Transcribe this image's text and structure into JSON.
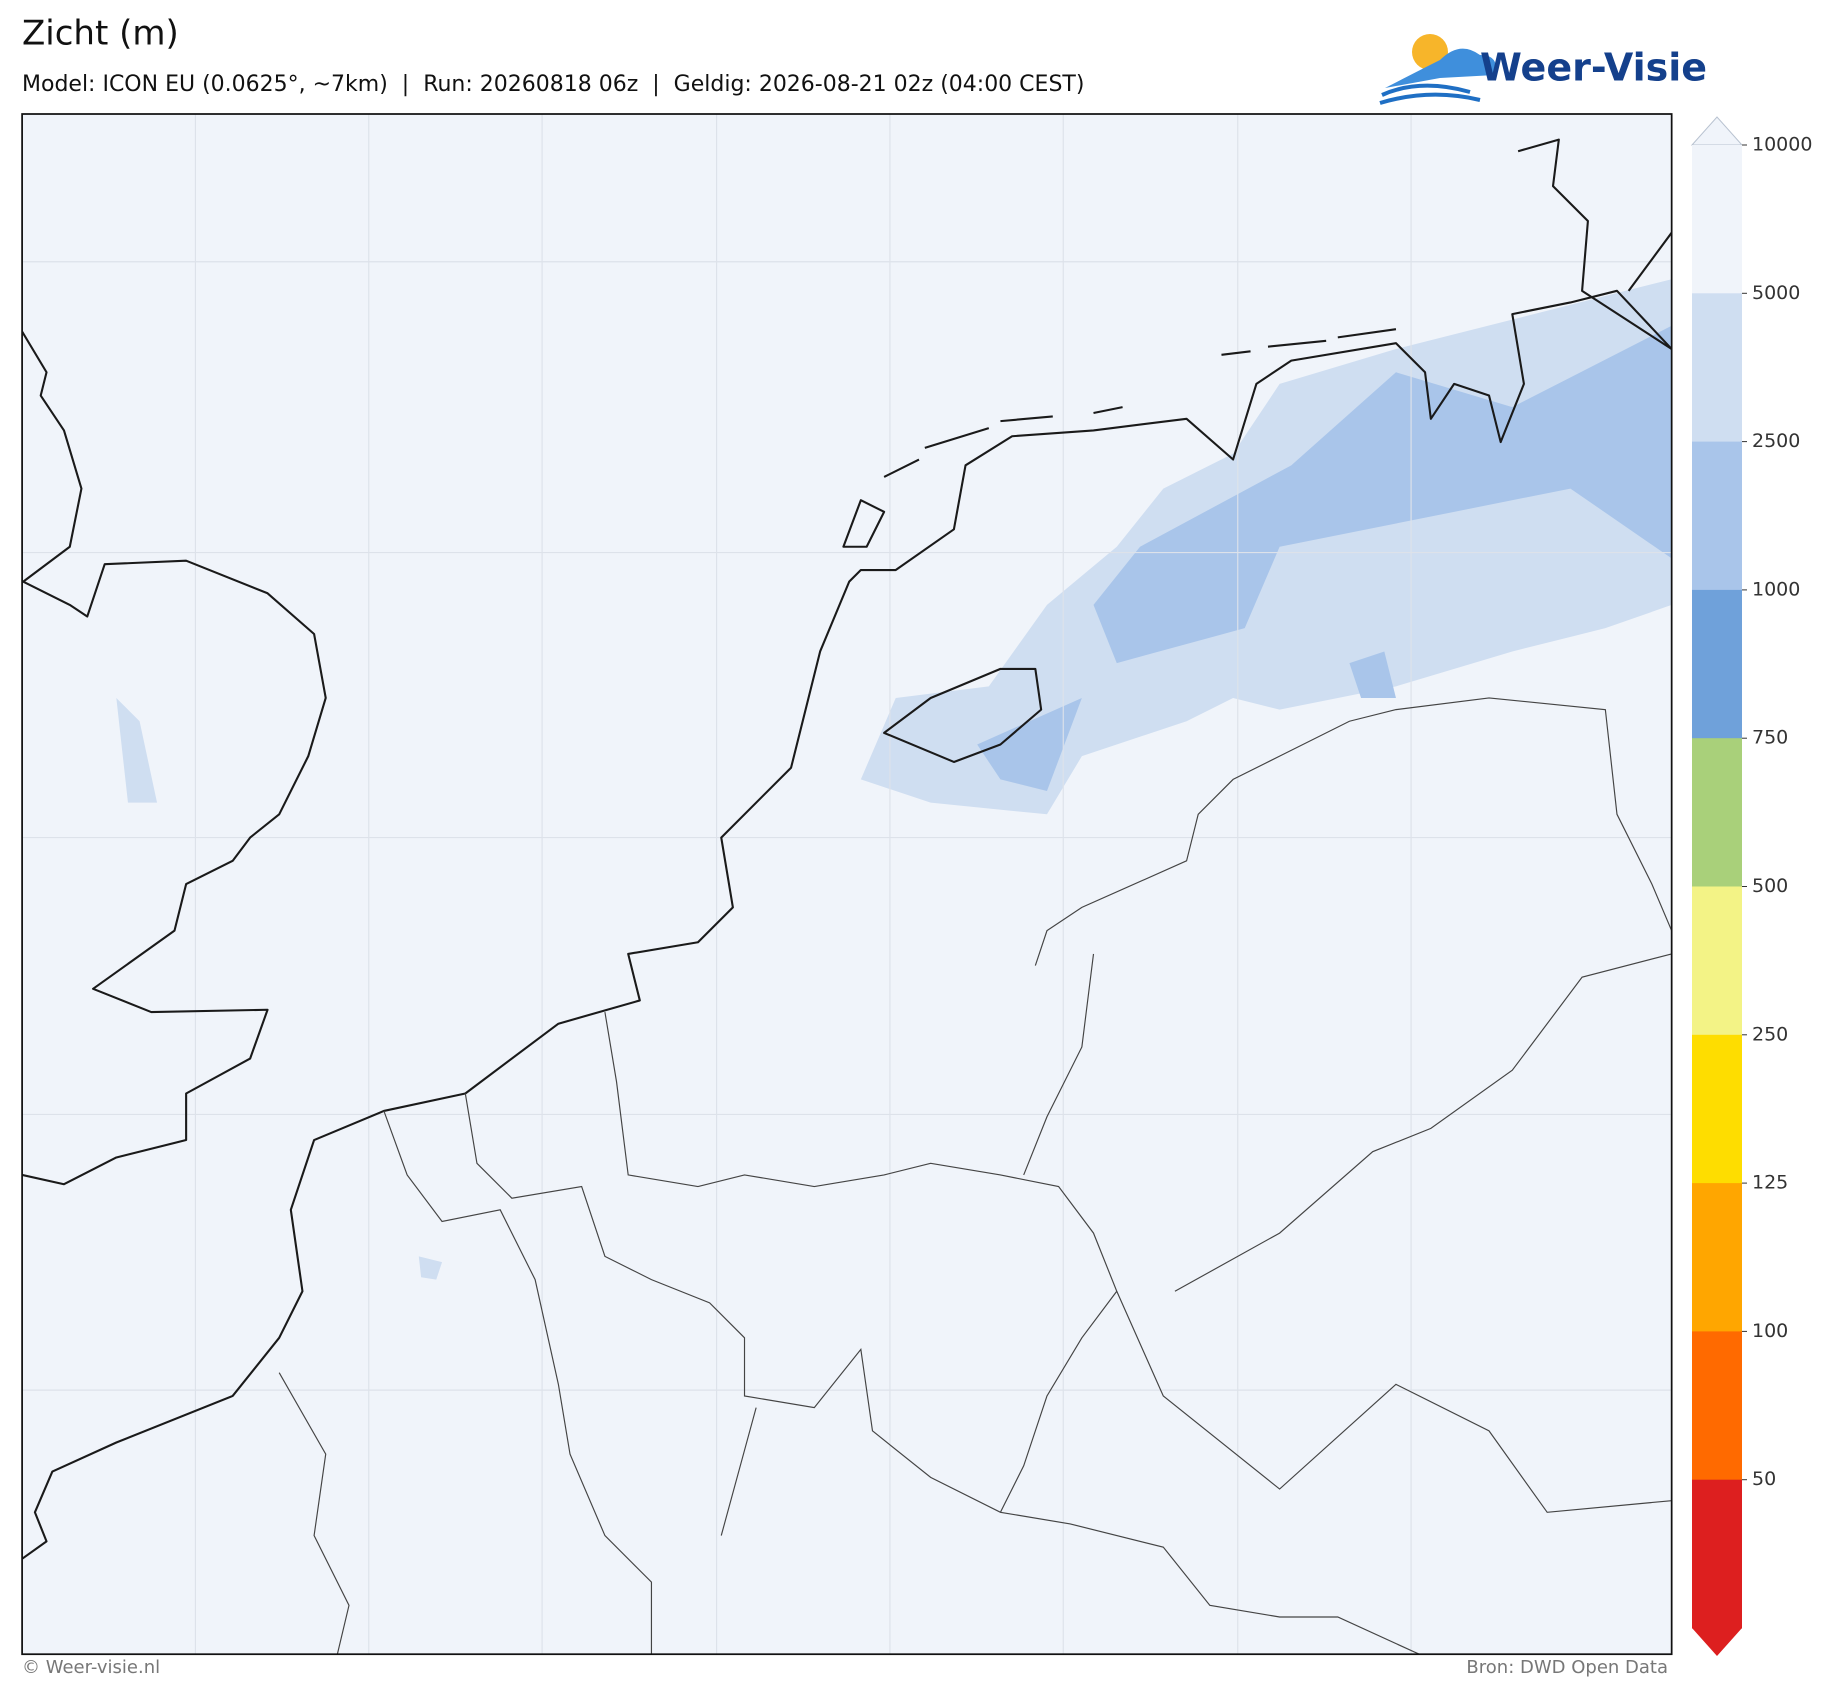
{
  "header": {
    "title": "Zicht (m)",
    "subtitle": "Model: ICON EU (0.0625°, ~7km)  |  Run: 20260818 06z  |  Geldig: 2026-08-21 02z (04:00 CEST)",
    "logo": "Weer-Visie"
  },
  "colorbar": {
    "ticks": [
      10000,
      5000,
      2500,
      1000,
      750,
      500,
      250,
      125,
      100,
      50
    ],
    "colors": [
      "#f0f4fa",
      "#cfdef1",
      "#a9c5ea",
      "#6fa1da",
      "#a9d07a",
      "#f3f386",
      "#fedd00",
      "#ffa600",
      "#ff6a00",
      "#dd1f1f"
    ]
  },
  "footer": {
    "credit": "© Weer-visie.nl",
    "source": "Bron: DWD Open Data"
  }
}
